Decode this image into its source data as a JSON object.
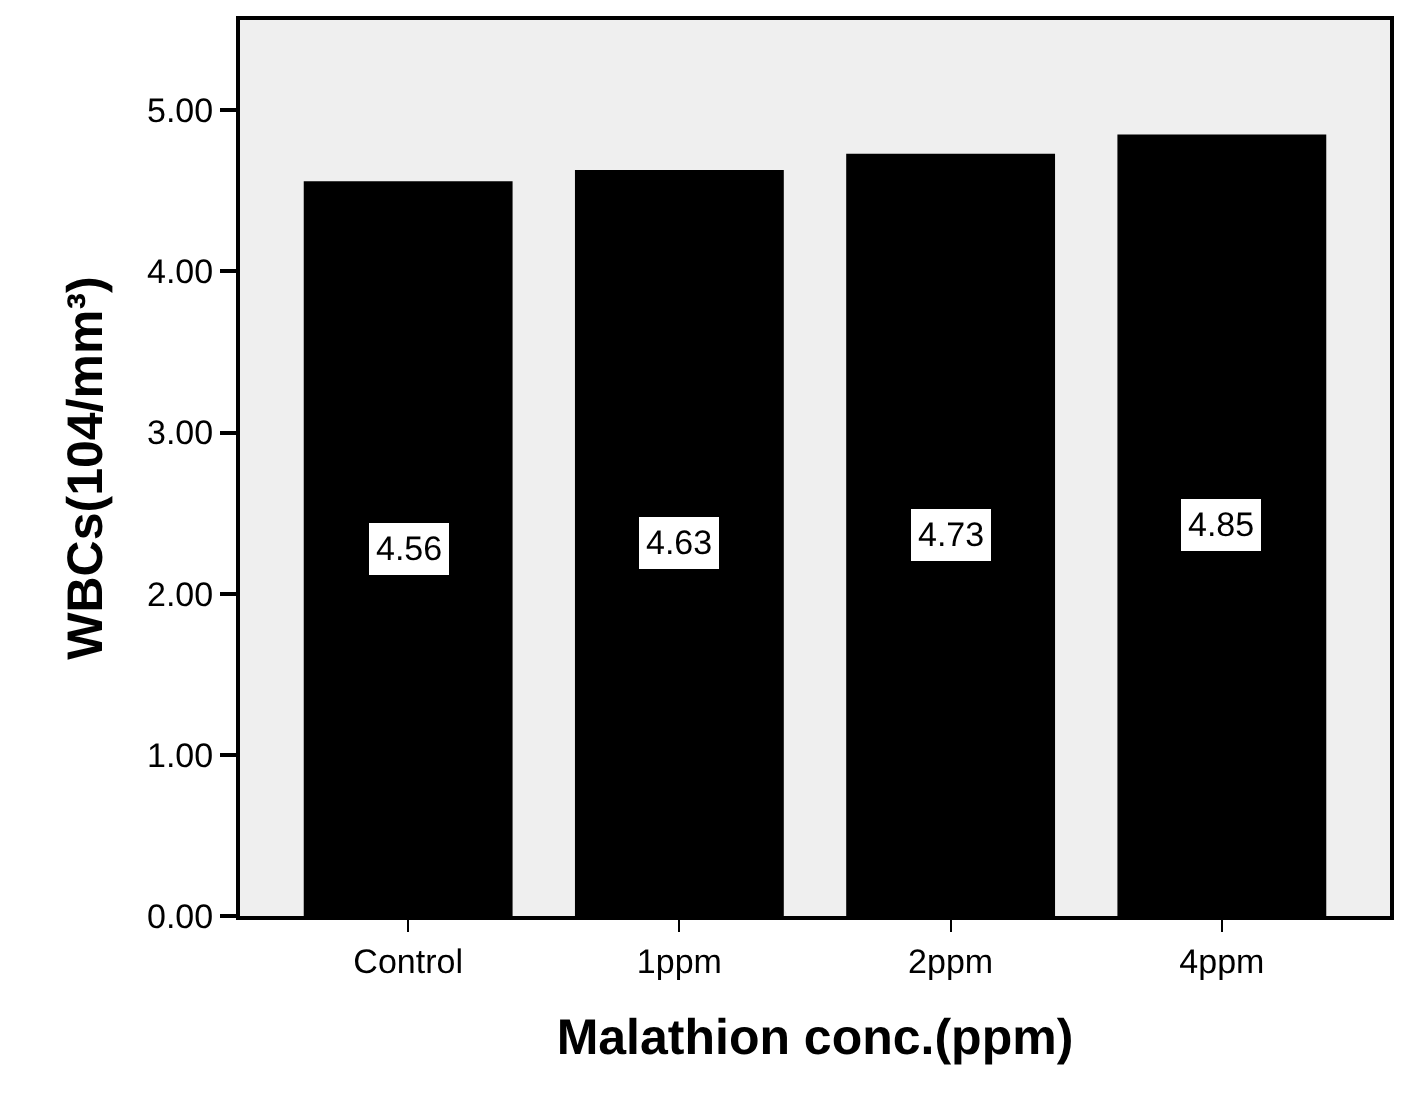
{
  "chart_data": {
    "type": "bar",
    "xlabel": "Malathion conc.(ppm)",
    "ylabel": "WBCs(104/mm³)",
    "categories": [
      "Control",
      "1ppm",
      "2ppm",
      "4ppm"
    ],
    "values": [
      4.56,
      4.63,
      4.73,
      4.85
    ],
    "color": "#000000",
    "ylim": [
      0,
      5.56
    ],
    "yticks": [
      {
        "value": 0,
        "label": "0.00"
      },
      {
        "value": 1,
        "label": "1.00"
      },
      {
        "value": 2,
        "label": "2.00"
      },
      {
        "value": 3,
        "label": "3.00"
      },
      {
        "value": 4,
        "label": "4.00"
      },
      {
        "value": 5,
        "label": "5.00"
      }
    ],
    "data_labels": true
  }
}
